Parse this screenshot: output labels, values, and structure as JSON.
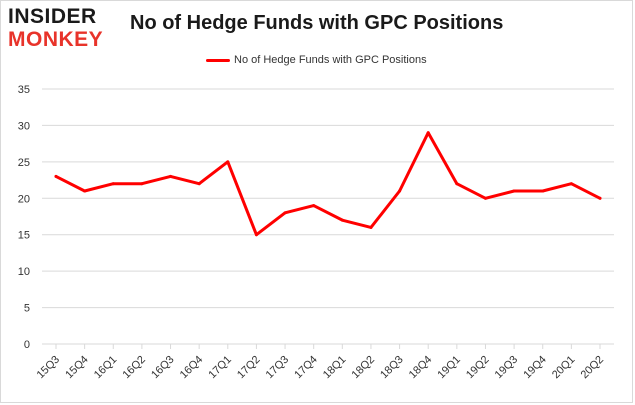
{
  "logo": {
    "line1": "INSIDER",
    "line2": "MONKEY",
    "color_dark": "#1a1a1a",
    "color_red": "#e8332a"
  },
  "chart_data": {
    "type": "line",
    "title": "No of Hedge Funds with GPC Positions",
    "xlabel": "",
    "ylabel": "",
    "categories": [
      "15Q3",
      "15Q4",
      "16Q1",
      "16Q2",
      "16Q3",
      "16Q4",
      "17Q1",
      "17Q2",
      "17Q3",
      "17Q4",
      "18Q1",
      "18Q2",
      "18Q3",
      "18Q4",
      "19Q1",
      "19Q2",
      "19Q3",
      "19Q4",
      "20Q1",
      "20Q2"
    ],
    "series": [
      {
        "name": "No of Hedge Funds with GPC Positions",
        "color": "#ff0000",
        "values": [
          23,
          21,
          22,
          22,
          23,
          22,
          25,
          15,
          18,
          19,
          17,
          16,
          21,
          29,
          22,
          20,
          21,
          21,
          22,
          20
        ]
      }
    ],
    "ylim": [
      0,
      35
    ],
    "yticks": [
      0,
      5,
      10,
      15,
      20,
      25,
      30,
      35
    ],
    "grid": "horizontal",
    "gridColor": "#d9d9d9",
    "legend_position": "top-center"
  }
}
